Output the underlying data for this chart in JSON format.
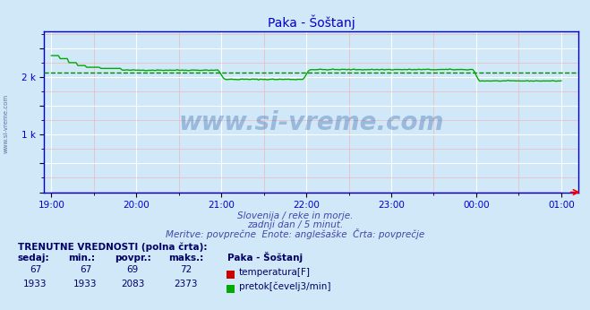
{
  "title": "Paka - Šoštanj",
  "bg_color": "#d0e8f8",
  "plot_bg_color": "#d0e8f8",
  "grid_color_major": "#ffffff",
  "grid_color_minor": "#f0b8b8",
  "x_tick_labels": [
    "19:00",
    "20:00",
    "21:00",
    "22:00",
    "23:00",
    "00:00",
    "01:00"
  ],
  "x_tick_positions": [
    0,
    60,
    120,
    180,
    240,
    300,
    360
  ],
  "ylim": [
    0,
    2800
  ],
  "xlim": [
    -5,
    372
  ],
  "avg_line_value": 2083,
  "avg_line_color": "#008800",
  "temp_color": "#cc0000",
  "flow_color": "#00aa00",
  "temp_value": 67,
  "temp_min": 67,
  "temp_avg": 69,
  "temp_max": 72,
  "flow_value": 1933,
  "flow_min": 1933,
  "flow_avg": 2083,
  "flow_max": 2373,
  "subtitle1": "Slovenija / reke in morje.",
  "subtitle2": "zadnji dan / 5 minut.",
  "subtitle3": "Meritve: povprečne  Enote: anglešaške  Črta: povprečje",
  "label1": "TRENUTNE VREDNOSTI (polna črta):",
  "col_sedaj": "sedaj:",
  "col_min": "min.:",
  "col_povpr": "povpr.:",
  "col_maks": "maks.:",
  "station": "Paka - Šoštanj",
  "legend_temp": "temperatura[F]",
  "legend_flow": "pretok[čevelj3/min]",
  "title_color": "#0000cc",
  "subtitle_color": "#4444aa",
  "label_color": "#000066",
  "axis_color": "#0000cc",
  "spine_color": "#0000cc",
  "watermark_text": "www.si-vreme.com",
  "watermark_color": "#1a4fa0",
  "watermark_alpha": 0.3,
  "sidebar_text": "www.si-vreme.com"
}
